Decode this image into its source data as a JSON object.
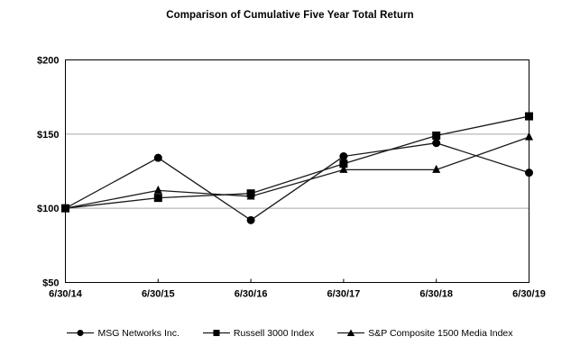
{
  "page": {
    "background_color": "#ffffff",
    "text_color": "#000000"
  },
  "chart_data": {
    "type": "line",
    "title": "Comparison of Cumulative Five Year Total Return",
    "categories": [
      "6/30/14",
      "6/30/15",
      "6/30/16",
      "6/30/17",
      "6/30/18",
      "6/30/19"
    ],
    "series": [
      {
        "name": "MSG Networks Inc.",
        "marker": "circle",
        "values": [
          100,
          134,
          92,
          135,
          144,
          124
        ]
      },
      {
        "name": "Russell 3000 Index",
        "marker": "square",
        "values": [
          100,
          107,
          110,
          130,
          149,
          162
        ]
      },
      {
        "name": "S&P Composite 1500 Media Index",
        "marker": "triangle",
        "values": [
          100,
          112,
          108,
          126,
          126,
          148
        ]
      }
    ],
    "xlabel": "",
    "ylabel": "",
    "ylim": [
      50,
      200
    ],
    "yticks": [
      {
        "value": 50,
        "label": "$50"
      },
      {
        "value": 100,
        "label": "$100"
      },
      {
        "value": 150,
        "label": "$150"
      },
      {
        "value": 200,
        "label": "$200"
      }
    ],
    "grid": "horizontal gridlines at interior y-ticks, full black border box",
    "legend_position": "bottom",
    "line_color": "#1a1a1a",
    "marker_color": "#000000",
    "gridline_color": "#a6a6a6",
    "axis_color": "#000000"
  }
}
